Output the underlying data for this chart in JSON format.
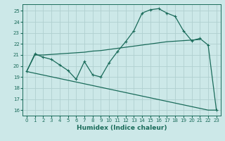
{
  "xlabel": "Humidex (Indice chaleur)",
  "bg_color": "#cce8e8",
  "grid_color": "#b0d0d0",
  "line_color": "#1a6b5a",
  "xlim": [
    -0.5,
    23.5
  ],
  "ylim": [
    15.5,
    25.6
  ],
  "yticks": [
    16,
    17,
    18,
    19,
    20,
    21,
    22,
    23,
    24,
    25
  ],
  "xticks": [
    0,
    1,
    2,
    3,
    4,
    5,
    6,
    7,
    8,
    9,
    10,
    11,
    12,
    13,
    14,
    15,
    16,
    17,
    18,
    19,
    20,
    21,
    22,
    23
  ],
  "curve1_x": [
    0,
    1,
    2,
    3,
    4,
    5,
    6,
    7,
    8,
    9,
    10,
    11,
    12,
    13,
    14,
    15,
    16,
    17,
    18,
    19,
    20,
    21,
    22,
    23
  ],
  "curve1_y": [
    19.5,
    21.1,
    20.8,
    20.6,
    20.1,
    19.6,
    18.8,
    20.4,
    19.2,
    19.0,
    20.3,
    21.3,
    22.2,
    23.2,
    24.8,
    25.1,
    25.2,
    24.8,
    24.5,
    23.2,
    22.3,
    22.5,
    21.9,
    16.0
  ],
  "curve1_markers": [
    0,
    1,
    2,
    3,
    4,
    5,
    6,
    7,
    8,
    9,
    10,
    11,
    12,
    13,
    14,
    15,
    16,
    17,
    18,
    19,
    20,
    21,
    22,
    23
  ],
  "curve2_x": [
    0,
    1,
    2,
    3,
    4,
    5,
    6,
    7,
    8,
    9,
    10,
    11,
    12,
    13,
    14,
    15,
    16,
    17,
    18,
    19,
    20,
    21
  ],
  "curve2_y": [
    19.5,
    21.0,
    21.0,
    21.05,
    21.1,
    21.15,
    21.2,
    21.25,
    21.35,
    21.4,
    21.5,
    21.6,
    21.7,
    21.8,
    21.9,
    22.0,
    22.1,
    22.2,
    22.25,
    22.3,
    22.35,
    22.4
  ],
  "curve3_x": [
    0,
    22,
    23
  ],
  "curve3_y": [
    19.5,
    16.0,
    16.0
  ]
}
